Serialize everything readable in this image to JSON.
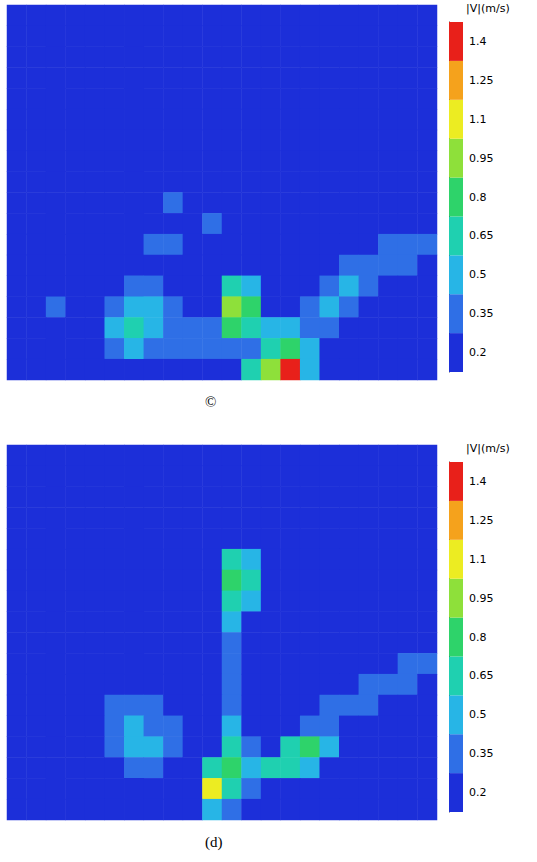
{
  "chart_data": [
    {
      "type": "heatmap",
      "title": "©",
      "tick_labels": false,
      "cells": [
        [
          0.2,
          0.2,
          0.2,
          0.2,
          0.2,
          0.2,
          0.2,
          0.2,
          0.2,
          0.2,
          0.2,
          0.2,
          0.2,
          0.2,
          0.2,
          0.2,
          0.2,
          0.2,
          0.2,
          0.2,
          0.2,
          0.2
        ],
        [
          0.2,
          0.2,
          0.2,
          0.2,
          0.2,
          0.2,
          0.2,
          0.2,
          0.2,
          0.2,
          0.2,
          0.2,
          0.2,
          0.2,
          0.2,
          0.2,
          0.2,
          0.2,
          0.2,
          0.2,
          0.2,
          0.2
        ],
        [
          0.2,
          0.2,
          0.2,
          0.2,
          0.2,
          0.2,
          0.2,
          0.2,
          0.2,
          0.2,
          0.2,
          0.2,
          0.2,
          0.2,
          0.2,
          0.2,
          0.2,
          0.2,
          0.2,
          0.2,
          0.2,
          0.2
        ],
        [
          0.2,
          0.2,
          0.2,
          0.2,
          0.2,
          0.2,
          0.2,
          0.2,
          0.2,
          0.2,
          0.2,
          0.2,
          0.2,
          0.2,
          0.2,
          0.2,
          0.2,
          0.2,
          0.2,
          0.2,
          0.2,
          0.2
        ],
        [
          0.2,
          0.2,
          0.2,
          0.2,
          0.2,
          0.2,
          0.2,
          0.2,
          0.2,
          0.2,
          0.2,
          0.2,
          0.2,
          0.2,
          0.2,
          0.2,
          0.2,
          0.2,
          0.2,
          0.2,
          0.2,
          0.2
        ],
        [
          0.2,
          0.2,
          0.2,
          0.2,
          0.2,
          0.2,
          0.2,
          0.2,
          0.2,
          0.2,
          0.2,
          0.2,
          0.2,
          0.2,
          0.2,
          0.2,
          0.2,
          0.2,
          0.2,
          0.2,
          0.2,
          0.2
        ],
        [
          0.2,
          0.2,
          0.2,
          0.2,
          0.2,
          0.2,
          0.2,
          0.2,
          0.2,
          0.2,
          0.2,
          0.2,
          0.2,
          0.2,
          0.2,
          0.2,
          0.2,
          0.2,
          0.2,
          0.2,
          0.2,
          0.2
        ],
        [
          0.2,
          0.2,
          0.2,
          0.2,
          0.2,
          0.2,
          0.2,
          0.2,
          0.2,
          0.2,
          0.2,
          0.2,
          0.2,
          0.2,
          0.2,
          0.2,
          0.2,
          0.2,
          0.2,
          0.2,
          0.2,
          0.2
        ],
        [
          0.2,
          0.2,
          0.2,
          0.2,
          0.2,
          0.2,
          0.2,
          0.2,
          0.2,
          0.2,
          0.2,
          0.2,
          0.2,
          0.2,
          0.2,
          0.2,
          0.2,
          0.2,
          0.2,
          0.2,
          0.2,
          0.2
        ],
        [
          0.2,
          0.2,
          0.2,
          0.2,
          0.2,
          0.2,
          0.2,
          0.2,
          0.35,
          0.2,
          0.2,
          0.2,
          0.2,
          0.2,
          0.2,
          0.2,
          0.2,
          0.2,
          0.2,
          0.2,
          0.2,
          0.2
        ],
        [
          0.2,
          0.2,
          0.2,
          0.2,
          0.2,
          0.2,
          0.2,
          0.2,
          0.2,
          0.2,
          0.35,
          0.2,
          0.2,
          0.2,
          0.2,
          0.2,
          0.2,
          0.2,
          0.2,
          0.2,
          0.2,
          0.2
        ],
        [
          0.2,
          0.2,
          0.2,
          0.2,
          0.2,
          0.2,
          0.2,
          0.35,
          0.35,
          0.2,
          0.2,
          0.2,
          0.2,
          0.2,
          0.2,
          0.2,
          0.2,
          0.2,
          0.2,
          0.35,
          0.35,
          0.35
        ],
        [
          0.2,
          0.2,
          0.2,
          0.2,
          0.2,
          0.2,
          0.2,
          0.2,
          0.2,
          0.2,
          0.2,
          0.2,
          0.2,
          0.2,
          0.2,
          0.2,
          0.2,
          0.35,
          0.35,
          0.35,
          0.35,
          0.2
        ],
        [
          0.2,
          0.2,
          0.2,
          0.2,
          0.2,
          0.2,
          0.35,
          0.35,
          0.2,
          0.2,
          0.2,
          0.65,
          0.5,
          0.2,
          0.2,
          0.2,
          0.35,
          0.5,
          0.35,
          0.2,
          0.2,
          0.2
        ],
        [
          0.2,
          0.2,
          0.35,
          0.2,
          0.2,
          0.35,
          0.5,
          0.5,
          0.35,
          0.2,
          0.2,
          0.95,
          0.8,
          0.2,
          0.2,
          0.35,
          0.5,
          0.35,
          0.2,
          0.2,
          0.2,
          0.2
        ],
        [
          0.2,
          0.2,
          0.2,
          0.2,
          0.2,
          0.5,
          0.65,
          0.5,
          0.35,
          0.35,
          0.35,
          0.8,
          0.65,
          0.5,
          0.5,
          0.35,
          0.35,
          0.2,
          0.2,
          0.2,
          0.2,
          0.2
        ],
        [
          0.2,
          0.2,
          0.2,
          0.2,
          0.2,
          0.35,
          0.5,
          0.35,
          0.35,
          0.35,
          0.35,
          0.35,
          0.35,
          0.65,
          0.8,
          0.5,
          0.2,
          0.2,
          0.2,
          0.2,
          0.2,
          0.2
        ],
        [
          0.2,
          0.2,
          0.2,
          0.2,
          0.2,
          0.2,
          0.2,
          0.2,
          0.2,
          0.2,
          0.2,
          0.2,
          0.65,
          0.95,
          1.4,
          0.5,
          0.2,
          0.2,
          0.2,
          0.2,
          0.2,
          0.2
        ]
      ],
      "colorbar": {
        "label": "|V|(m/s)",
        "range": [
          0.125,
          1.475
        ],
        "ticks": [
          0.2,
          0.35,
          0.5,
          0.65,
          0.8,
          0.95,
          1.1,
          1.25,
          1.4
        ],
        "colors": [
          "#1c2fd9",
          "#2f6fe6",
          "#27b5e6",
          "#1fd0b0",
          "#2ed36a",
          "#8ee03a",
          "#ecec22",
          "#f5a21c",
          "#e8201a"
        ]
      }
    },
    {
      "type": "heatmap",
      "title": "(d)",
      "tick_labels": false,
      "cells": [
        [
          0.2,
          0.2,
          0.2,
          0.2,
          0.2,
          0.2,
          0.2,
          0.2,
          0.2,
          0.2,
          0.2,
          0.2,
          0.2,
          0.2,
          0.2,
          0.2,
          0.2,
          0.2,
          0.2,
          0.2,
          0.2,
          0.2
        ],
        [
          0.2,
          0.2,
          0.2,
          0.2,
          0.2,
          0.2,
          0.2,
          0.2,
          0.2,
          0.2,
          0.2,
          0.2,
          0.2,
          0.2,
          0.2,
          0.2,
          0.2,
          0.2,
          0.2,
          0.2,
          0.2,
          0.2
        ],
        [
          0.2,
          0.2,
          0.2,
          0.2,
          0.2,
          0.2,
          0.2,
          0.2,
          0.2,
          0.2,
          0.2,
          0.2,
          0.2,
          0.2,
          0.2,
          0.2,
          0.2,
          0.2,
          0.2,
          0.2,
          0.2,
          0.2
        ],
        [
          0.2,
          0.2,
          0.2,
          0.2,
          0.2,
          0.2,
          0.2,
          0.2,
          0.2,
          0.2,
          0.2,
          0.2,
          0.2,
          0.2,
          0.2,
          0.2,
          0.2,
          0.2,
          0.2,
          0.2,
          0.2,
          0.2
        ],
        [
          0.2,
          0.2,
          0.2,
          0.2,
          0.2,
          0.2,
          0.2,
          0.2,
          0.2,
          0.2,
          0.2,
          0.2,
          0.2,
          0.2,
          0.2,
          0.2,
          0.2,
          0.2,
          0.2,
          0.2,
          0.2,
          0.2
        ],
        [
          0.2,
          0.2,
          0.2,
          0.2,
          0.2,
          0.2,
          0.2,
          0.2,
          0.2,
          0.2,
          0.2,
          0.65,
          0.5,
          0.2,
          0.2,
          0.2,
          0.2,
          0.2,
          0.2,
          0.2,
          0.2,
          0.2
        ],
        [
          0.2,
          0.2,
          0.2,
          0.2,
          0.2,
          0.2,
          0.2,
          0.2,
          0.2,
          0.2,
          0.2,
          0.8,
          0.65,
          0.2,
          0.2,
          0.2,
          0.2,
          0.2,
          0.2,
          0.2,
          0.2,
          0.2
        ],
        [
          0.2,
          0.2,
          0.2,
          0.2,
          0.2,
          0.2,
          0.2,
          0.2,
          0.2,
          0.2,
          0.2,
          0.65,
          0.5,
          0.2,
          0.2,
          0.2,
          0.2,
          0.2,
          0.2,
          0.2,
          0.2,
          0.2
        ],
        [
          0.2,
          0.2,
          0.2,
          0.2,
          0.2,
          0.2,
          0.2,
          0.2,
          0.2,
          0.2,
          0.2,
          0.5,
          0.2,
          0.2,
          0.2,
          0.2,
          0.2,
          0.2,
          0.2,
          0.2,
          0.2,
          0.2
        ],
        [
          0.2,
          0.2,
          0.2,
          0.2,
          0.2,
          0.2,
          0.2,
          0.2,
          0.2,
          0.2,
          0.2,
          0.35,
          0.2,
          0.2,
          0.2,
          0.2,
          0.2,
          0.2,
          0.2,
          0.2,
          0.2,
          0.2
        ],
        [
          0.2,
          0.2,
          0.2,
          0.2,
          0.2,
          0.2,
          0.2,
          0.2,
          0.2,
          0.2,
          0.2,
          0.35,
          0.2,
          0.2,
          0.2,
          0.2,
          0.2,
          0.2,
          0.2,
          0.2,
          0.35,
          0.35
        ],
        [
          0.2,
          0.2,
          0.2,
          0.2,
          0.2,
          0.2,
          0.2,
          0.2,
          0.2,
          0.2,
          0.2,
          0.35,
          0.2,
          0.2,
          0.2,
          0.2,
          0.2,
          0.2,
          0.35,
          0.35,
          0.35,
          0.2
        ],
        [
          0.2,
          0.2,
          0.2,
          0.2,
          0.2,
          0.35,
          0.35,
          0.35,
          0.2,
          0.2,
          0.2,
          0.35,
          0.2,
          0.2,
          0.2,
          0.2,
          0.35,
          0.35,
          0.35,
          0.2,
          0.2,
          0.2
        ],
        [
          0.2,
          0.2,
          0.2,
          0.2,
          0.2,
          0.35,
          0.5,
          0.35,
          0.35,
          0.2,
          0.2,
          0.5,
          0.2,
          0.2,
          0.2,
          0.35,
          0.35,
          0.2,
          0.2,
          0.2,
          0.2,
          0.2
        ],
        [
          0.2,
          0.2,
          0.2,
          0.2,
          0.2,
          0.35,
          0.5,
          0.5,
          0.35,
          0.2,
          0.2,
          0.65,
          0.35,
          0.2,
          0.65,
          0.8,
          0.5,
          0.2,
          0.2,
          0.2,
          0.2,
          0.2
        ],
        [
          0.2,
          0.2,
          0.2,
          0.2,
          0.2,
          0.2,
          0.35,
          0.35,
          0.2,
          0.2,
          0.65,
          0.8,
          0.5,
          0.65,
          0.65,
          0.5,
          0.2,
          0.2,
          0.2,
          0.2,
          0.2,
          0.2
        ],
        [
          0.2,
          0.2,
          0.2,
          0.2,
          0.2,
          0.2,
          0.2,
          0.2,
          0.2,
          0.2,
          1.1,
          0.65,
          0.35,
          0.2,
          0.2,
          0.2,
          0.2,
          0.2,
          0.2,
          0.2,
          0.2,
          0.2
        ],
        [
          0.2,
          0.2,
          0.2,
          0.2,
          0.2,
          0.2,
          0.2,
          0.2,
          0.2,
          0.2,
          0.5,
          0.35,
          0.2,
          0.2,
          0.2,
          0.2,
          0.2,
          0.2,
          0.2,
          0.2,
          0.2,
          0.2
        ]
      ],
      "colorbar": {
        "label": "|V|(m/s)",
        "range": [
          0.125,
          1.475
        ],
        "ticks": [
          0.2,
          0.35,
          0.5,
          0.65,
          0.8,
          0.95,
          1.1,
          1.25,
          1.4
        ],
        "colors": [
          "#1c2fd9",
          "#2f6fe6",
          "#27b5e6",
          "#1fd0b0",
          "#2ed36a",
          "#8ee03a",
          "#ecec22",
          "#f5a21c",
          "#e8201a"
        ]
      }
    }
  ]
}
